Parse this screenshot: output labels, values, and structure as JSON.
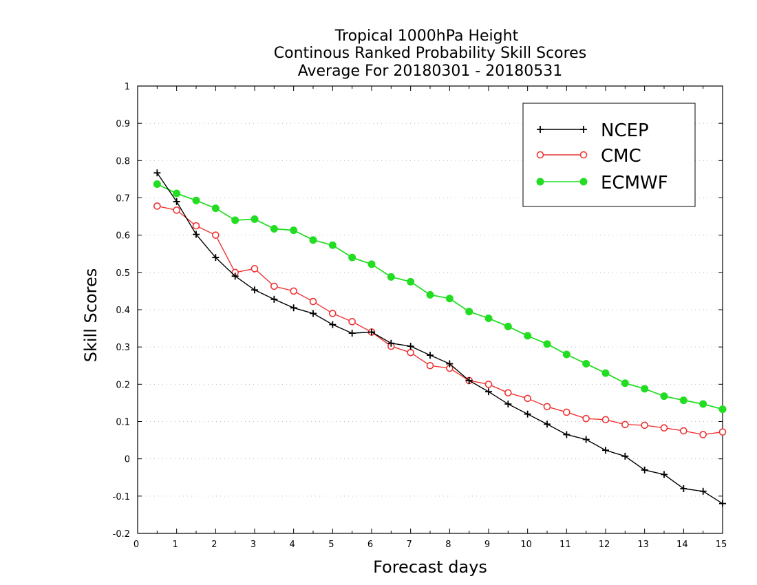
{
  "chart_data": {
    "type": "line",
    "title": [
      "Tropical 1000hPa Height",
      "Continous Ranked Probability Skill Scores",
      "Average For 20180301 - 20180531"
    ],
    "xlabel": "Forecast days",
    "ylabel": "Skill Scores",
    "xlim": [
      0,
      15
    ],
    "ylim": [
      -0.2,
      1
    ],
    "xticks": [
      0,
      1,
      2,
      3,
      4,
      5,
      6,
      7,
      8,
      9,
      10,
      11,
      12,
      13,
      14,
      15
    ],
    "yticks": [
      -0.2,
      -0.1,
      0,
      0.1,
      0.2,
      0.3,
      0.4,
      0.5,
      0.6,
      0.7,
      0.8,
      0.9,
      1
    ],
    "ytick_labels": [
      "-0.2",
      "-0.1",
      "0",
      "0.1",
      "0.2",
      "0.3",
      "0.4",
      "0.5",
      "0.6",
      "0.7",
      "0.8",
      "0.9",
      "1"
    ],
    "grid": true,
    "legend_position": "top-right",
    "x": [
      0.5,
      1,
      1.5,
      2,
      2.5,
      3,
      3.5,
      4,
      4.5,
      5,
      5.5,
      6,
      6.5,
      7,
      7.5,
      8,
      8.5,
      9,
      9.5,
      10,
      10.5,
      11,
      11.5,
      12,
      12.5,
      13,
      13.5,
      14,
      14.5,
      15
    ],
    "series": [
      {
        "name": "NCEP",
        "color": "#000000",
        "marker": "plus",
        "values": [
          0.767,
          0.69,
          0.602,
          0.54,
          0.49,
          0.453,
          0.428,
          0.405,
          0.39,
          0.36,
          0.337,
          0.34,
          0.31,
          0.302,
          0.278,
          0.255,
          0.21,
          0.18,
          0.147,
          0.12,
          0.093,
          0.065,
          0.052,
          0.023,
          0.007,
          -0.03,
          -0.042,
          -0.08,
          -0.087,
          -0.12
        ]
      },
      {
        "name": "CMC",
        "color": "#ee3333",
        "marker": "open-circle",
        "values": [
          0.678,
          0.667,
          0.625,
          0.6,
          0.5,
          0.51,
          0.463,
          0.45,
          0.422,
          0.39,
          0.368,
          0.34,
          0.302,
          0.285,
          0.25,
          0.243,
          0.21,
          0.2,
          0.177,
          0.162,
          0.14,
          0.125,
          0.108,
          0.105,
          0.092,
          0.09,
          0.083,
          0.075,
          0.065,
          0.072
        ]
      },
      {
        "name": "ECMWF",
        "color": "#22dd22",
        "marker": "filled-circle",
        "values": [
          0.737,
          0.712,
          0.693,
          0.672,
          0.64,
          0.643,
          0.617,
          0.613,
          0.587,
          0.573,
          0.54,
          0.522,
          0.488,
          0.475,
          0.44,
          0.43,
          0.395,
          0.377,
          0.355,
          0.33,
          0.308,
          0.28,
          0.255,
          0.23,
          0.203,
          0.188,
          0.168,
          0.157,
          0.147,
          0.133
        ]
      }
    ]
  }
}
